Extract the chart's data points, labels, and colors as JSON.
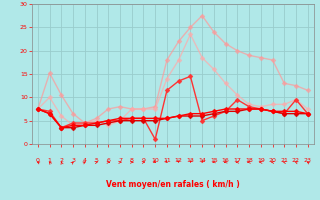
{
  "x": [
    0,
    1,
    2,
    3,
    4,
    5,
    6,
    7,
    8,
    9,
    10,
    11,
    12,
    13,
    14,
    15,
    16,
    17,
    18,
    19,
    20,
    21,
    22,
    23
  ],
  "series": [
    {
      "color": "#ff9999",
      "alpha": 0.7,
      "lw": 1.0,
      "marker": "D",
      "ms": 2.5,
      "values": [
        7.5,
        15.2,
        10.5,
        6.5,
        4.5,
        5.5,
        7.5,
        8.0,
        7.5,
        7.5,
        8.0,
        18.0,
        22.0,
        25.0,
        27.5,
        24.0,
        21.5,
        20.0,
        19.0,
        18.5,
        18.0,
        13.0,
        12.5,
        11.5
      ]
    },
    {
      "color": "#ffaaaa",
      "alpha": 0.7,
      "lw": 1.0,
      "marker": "D",
      "ms": 2.5,
      "values": [
        7.5,
        10.0,
        6.0,
        4.0,
        4.5,
        5.0,
        4.0,
        5.0,
        7.5,
        7.5,
        7.5,
        14.0,
        18.0,
        23.5,
        18.5,
        16.0,
        13.0,
        10.5,
        8.5,
        8.0,
        8.5,
        8.5,
        9.5,
        7.5
      ]
    },
    {
      "color": "#ff3333",
      "alpha": 1.0,
      "lw": 1.0,
      "marker": "D",
      "ms": 2.5,
      "values": [
        7.5,
        7.0,
        3.5,
        4.5,
        4.5,
        4.5,
        5.0,
        5.0,
        5.5,
        5.5,
        1.0,
        11.5,
        13.5,
        14.5,
        5.0,
        6.0,
        7.0,
        9.5,
        8.0,
        7.5,
        7.0,
        6.5,
        9.5,
        6.5
      ]
    },
    {
      "color": "#dd0000",
      "alpha": 1.0,
      "lw": 1.0,
      "marker": "D",
      "ms": 2.5,
      "values": [
        7.5,
        6.5,
        3.5,
        3.5,
        4.0,
        4.0,
        4.5,
        5.0,
        5.0,
        5.0,
        5.0,
        5.5,
        6.0,
        6.0,
        6.0,
        6.5,
        7.0,
        7.0,
        7.5,
        7.5,
        7.0,
        6.5,
        6.5,
        6.5
      ]
    },
    {
      "color": "#ff0000",
      "alpha": 1.0,
      "lw": 1.0,
      "marker": "D",
      "ms": 2.5,
      "values": [
        7.5,
        6.5,
        3.5,
        4.0,
        4.0,
        4.5,
        5.0,
        5.5,
        5.5,
        5.5,
        5.5,
        5.5,
        6.0,
        6.5,
        6.5,
        7.0,
        7.5,
        7.5,
        7.5,
        7.5,
        7.0,
        7.0,
        7.0,
        6.5
      ]
    }
  ],
  "xlim": [
    -0.5,
    23.5
  ],
  "ylim": [
    0,
    30
  ],
  "yticks": [
    0,
    5,
    10,
    15,
    20,
    25,
    30
  ],
  "xticks": [
    0,
    1,
    2,
    3,
    4,
    5,
    6,
    7,
    8,
    9,
    10,
    11,
    12,
    13,
    14,
    15,
    16,
    17,
    18,
    19,
    20,
    21,
    22,
    23
  ],
  "xlabel": "Vent moyen/en rafales ( km/h )",
  "bg_color": "#b0e8e8",
  "grid_color": "#99cccc",
  "tick_color": "#ff0000",
  "label_color": "#ff0000",
  "spine_color": "#888888",
  "arrow_angles": [
    225,
    200,
    190,
    150,
    135,
    120,
    90,
    100,
    90,
    100,
    45,
    30,
    10,
    350,
    340,
    300,
    290,
    280,
    270,
    260,
    250,
    240,
    230,
    220
  ]
}
